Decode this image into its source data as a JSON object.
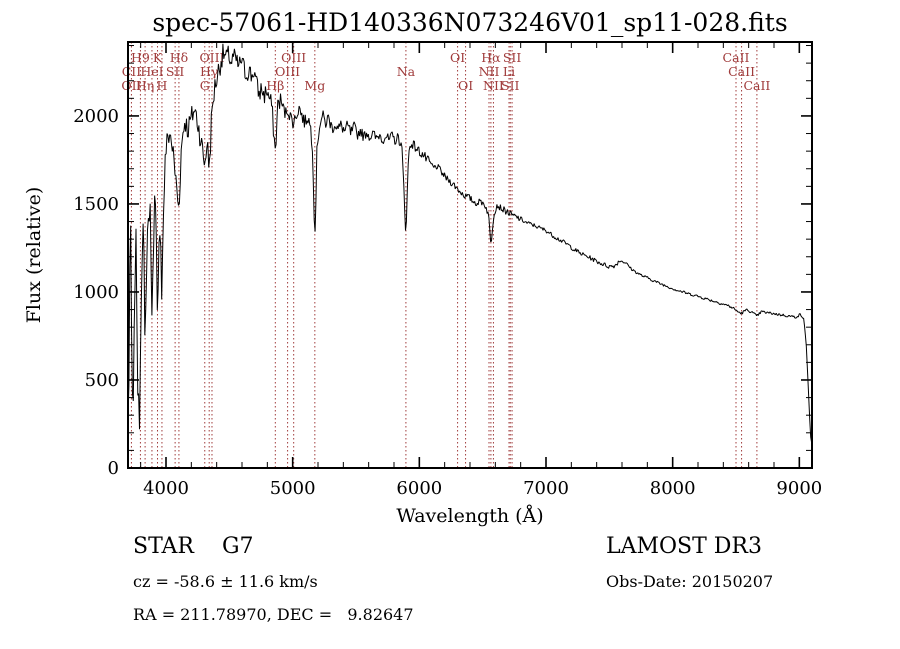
{
  "title": "spec-57061-HD140336N073246V01_sp11-028.fits",
  "annotations": {
    "class": "STAR    G7",
    "cz": "cz = -58.6 ± 11.6 km/s",
    "radec": "RA = 211.78970, DEC =   9.82647",
    "survey": "LAMOST DR3",
    "obs_date": "Obs-Date: 20150207"
  },
  "colors": {
    "line": "#000000",
    "marker": "#a03b3b",
    "axis": "#000000",
    "background": "#ffffff"
  },
  "chart_data": {
    "type": "line",
    "title": "spec-57061-HD140336N073246V01_sp11-028.fits",
    "xlabel": "Wavelength (Å)",
    "ylabel": "Flux (relative)",
    "xlim": [
      3700,
      9100
    ],
    "ylim": [
      0,
      2420
    ],
    "xticks": [
      4000,
      5000,
      6000,
      7000,
      8000,
      9000
    ],
    "yticks": [
      0,
      500,
      1000,
      1500,
      2000
    ],
    "grid": false,
    "legend": "none",
    "line_markers": [
      {
        "label": "H9",
        "wavelength": 3798,
        "row": 1
      },
      {
        "label": "K",
        "wavelength": 3933,
        "row": 1
      },
      {
        "label": "Hδ",
        "wavelength": 4102,
        "row": 1
      },
      {
        "label": "OIII",
        "wavelength": 4363,
        "row": 1
      },
      {
        "label": "OIII",
        "wavelength": 5008,
        "row": 1
      },
      {
        "label": "OI",
        "wavelength": 6302,
        "row": 1
      },
      {
        "label": "Hα",
        "wavelength": 6565,
        "row": 1
      },
      {
        "label": "SII",
        "wavelength": 6732,
        "row": 1
      },
      {
        "label": "CaII",
        "wavelength": 8500,
        "row": 1
      },
      {
        "label": "CII",
        "wavelength": 3727,
        "row": 2
      },
      {
        "label": "HeI",
        "wavelength": 3889,
        "row": 2
      },
      {
        "label": "SII",
        "wavelength": 4072,
        "row": 2
      },
      {
        "label": "Hγ",
        "wavelength": 4341,
        "row": 2
      },
      {
        "label": "OIII",
        "wavelength": 4960,
        "row": 2
      },
      {
        "label": "Na",
        "wavelength": 5894,
        "row": 2
      },
      {
        "label": "NII",
        "wavelength": 6550,
        "row": 2
      },
      {
        "label": "Li",
        "wavelength": 6708,
        "row": 2
      },
      {
        "label": "CaII",
        "wavelength": 8544,
        "row": 2
      },
      {
        "label": "OII",
        "wavelength": 3727,
        "row": 3
      },
      {
        "label": "Hη",
        "wavelength": 3835,
        "row": 3
      },
      {
        "label": "H",
        "wavelength": 3968,
        "row": 3
      },
      {
        "label": "G",
        "wavelength": 4306,
        "row": 3
      },
      {
        "label": "Hβ",
        "wavelength": 4863,
        "row": 3
      },
      {
        "label": "Mg",
        "wavelength": 5175,
        "row": 3
      },
      {
        "label": "OI",
        "wavelength": 6365,
        "row": 3
      },
      {
        "label": "NII",
        "wavelength": 6585,
        "row": 3
      },
      {
        "label": "SII",
        "wavelength": 6718,
        "row": 3
      },
      {
        "label": "CaII",
        "wavelength": 8665,
        "row": 3
      }
    ],
    "noise": {
      "seed": 7,
      "regions": [
        [
          3700,
          3990,
          110
        ],
        [
          3990,
          4450,
          70
        ],
        [
          4450,
          4900,
          55
        ],
        [
          4900,
          5500,
          40
        ],
        [
          5500,
          6100,
          30
        ],
        [
          6100,
          6800,
          20
        ],
        [
          6800,
          7600,
          13
        ],
        [
          7600,
          9100,
          8
        ]
      ]
    },
    "spectrum_points": [
      [
        3700,
        260
      ],
      [
        3706,
        420
      ],
      [
        3712,
        980
      ],
      [
        3718,
        1440
      ],
      [
        3724,
        1100
      ],
      [
        3730,
        600
      ],
      [
        3736,
        380
      ],
      [
        3742,
        300
      ],
      [
        3748,
        650
      ],
      [
        3755,
        1120
      ],
      [
        3762,
        1300
      ],
      [
        3770,
        900
      ],
      [
        3778,
        420
      ],
      [
        3786,
        280
      ],
      [
        3794,
        340
      ],
      [
        3802,
        950
      ],
      [
        3812,
        1280
      ],
      [
        3822,
        1380
      ],
      [
        3835,
        560
      ],
      [
        3846,
        1180
      ],
      [
        3858,
        1400
      ],
      [
        3870,
        1480
      ],
      [
        3880,
        1350
      ],
      [
        3889,
        800
      ],
      [
        3898,
        1280
      ],
      [
        3910,
        1500
      ],
      [
        3920,
        1420
      ],
      [
        3933,
        720
      ],
      [
        3944,
        1200
      ],
      [
        3954,
        1480
      ],
      [
        3968,
        960
      ],
      [
        3978,
        1420
      ],
      [
        3990,
        1700
      ],
      [
        4002,
        1820
      ],
      [
        4015,
        1880
      ],
      [
        4030,
        1900
      ],
      [
        4048,
        1840
      ],
      [
        4066,
        1720
      ],
      [
        4085,
        1580
      ],
      [
        4102,
        1460
      ],
      [
        4118,
        1780
      ],
      [
        4135,
        1920
      ],
      [
        4152,
        1980
      ],
      [
        4170,
        1920
      ],
      [
        4188,
        1960
      ],
      [
        4206,
        2000
      ],
      [
        4224,
        2040
      ],
      [
        4242,
        1990
      ],
      [
        4260,
        1930
      ],
      [
        4280,
        1840
      ],
      [
        4306,
        1720
      ],
      [
        4324,
        1860
      ],
      [
        4341,
        1700
      ],
      [
        4358,
        1960
      ],
      [
        4376,
        2120
      ],
      [
        4395,
        2200
      ],
      [
        4415,
        2260
      ],
      [
        4435,
        2320
      ],
      [
        4455,
        2350
      ],
      [
        4475,
        2330
      ],
      [
        4495,
        2350
      ],
      [
        4515,
        2300
      ],
      [
        4535,
        2340
      ],
      [
        4555,
        2310
      ],
      [
        4575,
        2280
      ],
      [
        4595,
        2320
      ],
      [
        4615,
        2270
      ],
      [
        4635,
        2230
      ],
      [
        4655,
        2270
      ],
      [
        4675,
        2220
      ],
      [
        4695,
        2260
      ],
      [
        4715,
        2180
      ],
      [
        4735,
        2120
      ],
      [
        4755,
        2160
      ],
      [
        4775,
        2110
      ],
      [
        4795,
        2150
      ],
      [
        4815,
        2100
      ],
      [
        4835,
        2060
      ],
      [
        4863,
        1790
      ],
      [
        4882,
        2060
      ],
      [
        4902,
        2100
      ],
      [
        4922,
        2050
      ],
      [
        4942,
        2010
      ],
      [
        4960,
        2040
      ],
      [
        4980,
        2000
      ],
      [
        5008,
        1960
      ],
      [
        5030,
        2010
      ],
      [
        5052,
        2050
      ],
      [
        5074,
        2000
      ],
      [
        5096,
        1960
      ],
      [
        5118,
        2000
      ],
      [
        5140,
        1940
      ],
      [
        5158,
        1820
      ],
      [
        5175,
        1280
      ],
      [
        5192,
        1820
      ],
      [
        5212,
        1950
      ],
      [
        5235,
        2000
      ],
      [
        5260,
        1960
      ],
      [
        5285,
        1990
      ],
      [
        5310,
        1930
      ],
      [
        5335,
        1960
      ],
      [
        5360,
        1920
      ],
      [
        5385,
        1950
      ],
      [
        5410,
        1910
      ],
      [
        5435,
        1940
      ],
      [
        5460,
        1900
      ],
      [
        5485,
        1930
      ],
      [
        5510,
        1890
      ],
      [
        5535,
        1920
      ],
      [
        5560,
        1880
      ],
      [
        5585,
        1910
      ],
      [
        5610,
        1880
      ],
      [
        5635,
        1900
      ],
      [
        5660,
        1870
      ],
      [
        5685,
        1895
      ],
      [
        5710,
        1865
      ],
      [
        5735,
        1890
      ],
      [
        5760,
        1860
      ],
      [
        5785,
        1885
      ],
      [
        5810,
        1860
      ],
      [
        5835,
        1880
      ],
      [
        5862,
        1820
      ],
      [
        5894,
        1330
      ],
      [
        5916,
        1800
      ],
      [
        5940,
        1850
      ],
      [
        5965,
        1825
      ],
      [
        5990,
        1805
      ],
      [
        6015,
        1790
      ],
      [
        6040,
        1770
      ],
      [
        6065,
        1745
      ],
      [
        6090,
        1725
      ],
      [
        6115,
        1705
      ],
      [
        6140,
        1715
      ],
      [
        6165,
        1690
      ],
      [
        6190,
        1665
      ],
      [
        6215,
        1645
      ],
      [
        6240,
        1630
      ],
      [
        6265,
        1615
      ],
      [
        6302,
        1585
      ],
      [
        6330,
        1565
      ],
      [
        6365,
        1545
      ],
      [
        6395,
        1535
      ],
      [
        6425,
        1515
      ],
      [
        6455,
        1505
      ],
      [
        6485,
        1515
      ],
      [
        6515,
        1500
      ],
      [
        6545,
        1445
      ],
      [
        6565,
        1265
      ],
      [
        6588,
        1445
      ],
      [
        6612,
        1495
      ],
      [
        6640,
        1480
      ],
      [
        6668,
        1465
      ],
      [
        6696,
        1455
      ],
      [
        6732,
        1435
      ],
      [
        6765,
        1425
      ],
      [
        6800,
        1415
      ],
      [
        6840,
        1395
      ],
      [
        6880,
        1385
      ],
      [
        6920,
        1375
      ],
      [
        6960,
        1360
      ],
      [
        7000,
        1350
      ],
      [
        7045,
        1325
      ],
      [
        7090,
        1305
      ],
      [
        7135,
        1285
      ],
      [
        7180,
        1265
      ],
      [
        7225,
        1240
      ],
      [
        7270,
        1220
      ],
      [
        7315,
        1205
      ],
      [
        7360,
        1190
      ],
      [
        7405,
        1172
      ],
      [
        7450,
        1158
      ],
      [
        7495,
        1145
      ],
      [
        7540,
        1148
      ],
      [
        7585,
        1180
      ],
      [
        7630,
        1165
      ],
      [
        7675,
        1130
      ],
      [
        7720,
        1108
      ],
      [
        7765,
        1090
      ],
      [
        7810,
        1078
      ],
      [
        7855,
        1062
      ],
      [
        7900,
        1048
      ],
      [
        7945,
        1035
      ],
      [
        7990,
        1022
      ],
      [
        8035,
        1010
      ],
      [
        8080,
        1000
      ],
      [
        8125,
        990
      ],
      [
        8170,
        982
      ],
      [
        8215,
        972
      ],
      [
        8260,
        962
      ],
      [
        8305,
        952
      ],
      [
        8350,
        942
      ],
      [
        8395,
        932
      ],
      [
        8440,
        922
      ],
      [
        8485,
        905
      ],
      [
        8510,
        890
      ],
      [
        8544,
        878
      ],
      [
        8580,
        898
      ],
      [
        8620,
        888
      ],
      [
        8665,
        862
      ],
      [
        8700,
        888
      ],
      [
        8745,
        882
      ],
      [
        8790,
        878
      ],
      [
        8835,
        872
      ],
      [
        8880,
        868
      ],
      [
        8925,
        862
      ],
      [
        8970,
        858
      ],
      [
        9010,
        872
      ],
      [
        9035,
        845
      ],
      [
        9055,
        700
      ],
      [
        9075,
        380
      ],
      [
        9090,
        180
      ],
      [
        9100,
        120
      ]
    ]
  }
}
